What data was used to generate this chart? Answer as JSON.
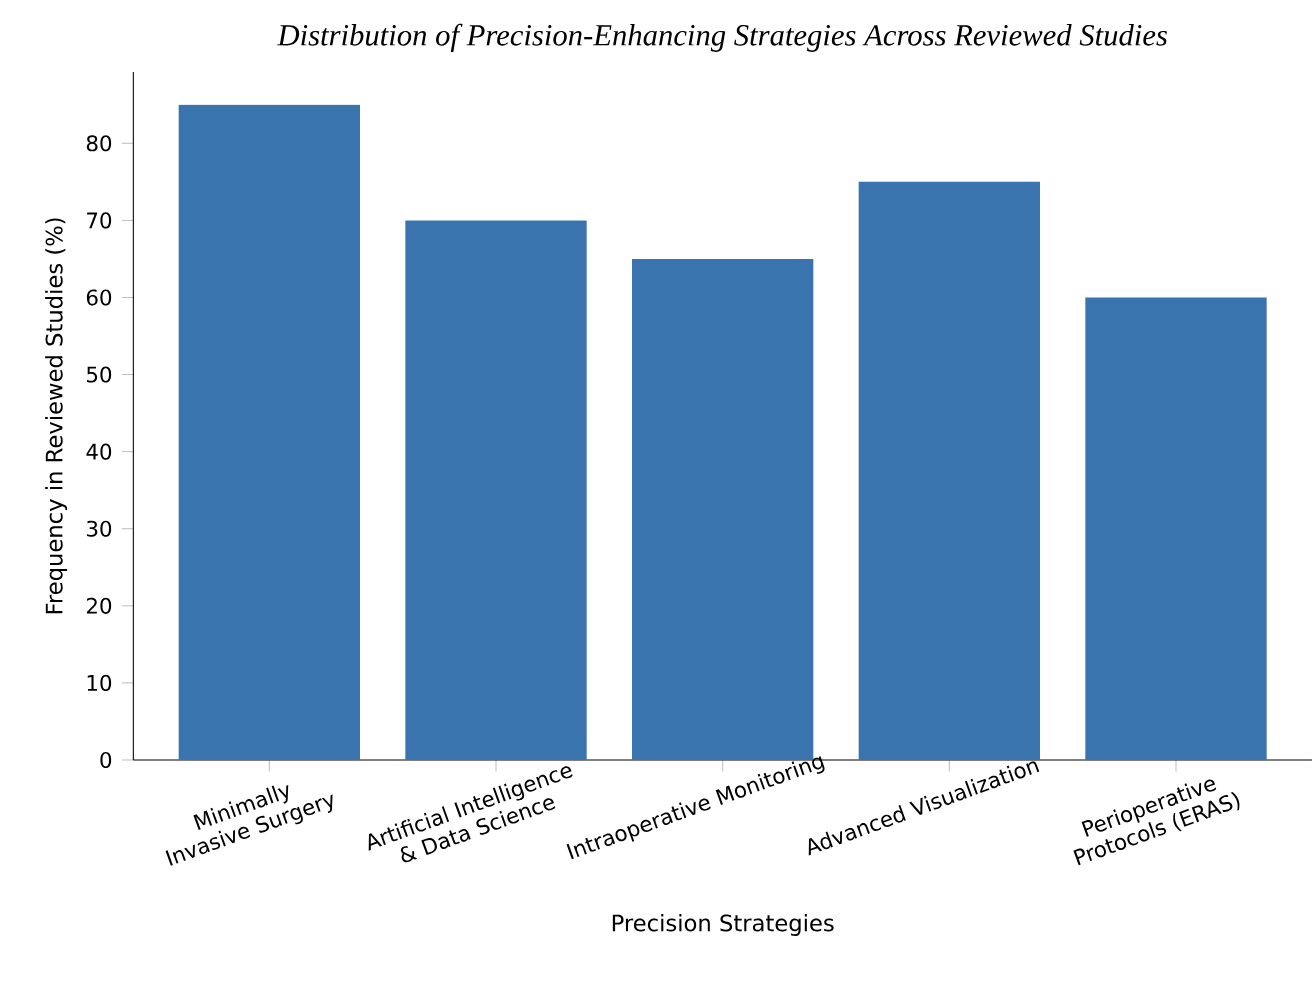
{
  "chart_data": {
    "type": "bar",
    "title": "Distribution of Precision-Enhancing Strategies Across Reviewed Studies",
    "xlabel": "Precision Strategies",
    "ylabel": "Frequency in Reviewed Studies (%)",
    "categories": [
      "Minimally Invasive Surgery",
      "Artificial Intelligence & Data Science",
      "Intraoperative Monitoring",
      "Advanced Visualization",
      "Perioperative Protocols (ERAS)"
    ],
    "values": [
      85,
      70,
      65,
      75,
      60
    ],
    "color": "#3a74ae",
    "ylim": [
      0,
      89.25
    ],
    "yticks": [
      0,
      10,
      20,
      30,
      40,
      50,
      60,
      70,
      80
    ],
    "grid": false
  }
}
